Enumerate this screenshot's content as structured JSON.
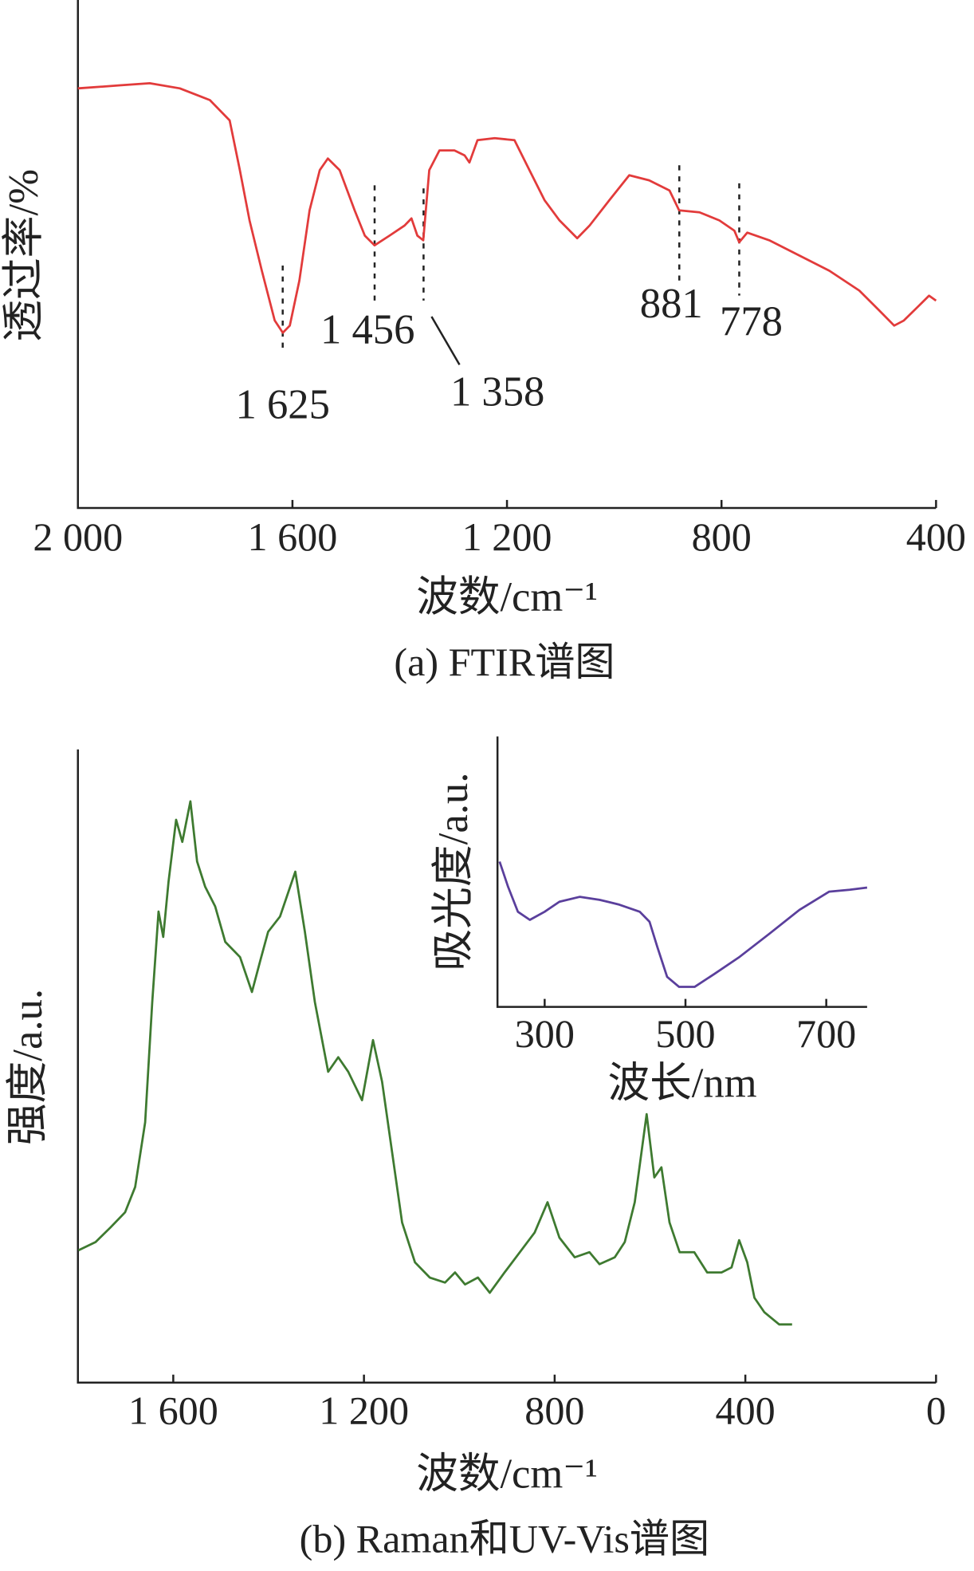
{
  "chart_data": [
    {
      "type": "line",
      "caption": "(a) FTIR谱图",
      "xlabel": "波数/cm⁻¹",
      "ylabel": "透过率/%",
      "color": "#e23b3b",
      "xlim": [
        2000,
        400
      ],
      "ylim": [
        0,
        100
      ],
      "xticks": [
        {
          "value": 2000,
          "label": "2 000"
        },
        {
          "value": 1600,
          "label": "1 600"
        },
        {
          "value": 1200,
          "label": "1 200"
        },
        800,
        400
      ],
      "annotations": [
        "1 625",
        "1 456",
        "1 358",
        "881",
        "778"
      ],
      "x": [
        2000,
        1922,
        1866,
        1810,
        1754,
        1717,
        1698,
        1680,
        1657,
        1633,
        1618,
        1605,
        1587,
        1568,
        1549,
        1534,
        1512,
        1484,
        1465,
        1447,
        1419,
        1391,
        1378,
        1367,
        1356,
        1345,
        1326,
        1298,
        1279,
        1270,
        1255,
        1223,
        1186,
        1158,
        1130,
        1102,
        1069,
        1046,
        1009,
        972,
        935,
        897,
        879,
        841,
        804,
        776,
        767,
        752,
        711,
        655,
        599,
        543,
        506,
        478,
        460,
        432,
        413,
        400
      ],
      "values": [
        82.6,
        83.2,
        83.6,
        82.6,
        80.3,
        76.3,
        66.5,
        56.6,
        46.7,
        36.9,
        34.5,
        35.9,
        44.8,
        58.6,
        66.5,
        68.8,
        66.5,
        58.6,
        53.6,
        51.7,
        53.6,
        55.6,
        57.0,
        53.6,
        52.7,
        66.5,
        70.4,
        70.4,
        69.4,
        68.0,
        72.4,
        72.8,
        72.4,
        66.5,
        60.6,
        56.6,
        53.1,
        55.6,
        60.6,
        65.5,
        64.5,
        62.5,
        58.6,
        58.2,
        56.6,
        54.6,
        52.3,
        54.2,
        52.7,
        49.7,
        46.7,
        42.8,
        38.9,
        35.9,
        36.9,
        39.8,
        41.8,
        40.8
      ]
    },
    {
      "type": "line",
      "caption": "(b) Raman和UV-Vis谱图",
      "xlabel": "波数/cm⁻¹",
      "ylabel": "强度/a.u.",
      "color": "#3e7a30",
      "xlim": [
        1800,
        0
      ],
      "ylim": [
        0,
        100
      ],
      "xticks": [
        {
          "value": 1600,
          "label": "1 600"
        },
        {
          "value": 1200,
          "label": "1 200"
        },
        800,
        400,
        0
      ],
      "x": [
        1799,
        1763,
        1732,
        1701,
        1680,
        1659,
        1644,
        1631,
        1621,
        1610,
        1594,
        1581,
        1564,
        1550,
        1533,
        1512,
        1491,
        1460,
        1435,
        1418,
        1401,
        1376,
        1344,
        1324,
        1303,
        1275,
        1254,
        1233,
        1204,
        1181,
        1162,
        1141,
        1120,
        1093,
        1062,
        1030,
        1009,
        988,
        961,
        936,
        905,
        873,
        842,
        815,
        790,
        758,
        727,
        706,
        674,
        653,
        632,
        607,
        591,
        576,
        559,
        538,
        507,
        480,
        450,
        429,
        413,
        396,
        381,
        360,
        329,
        302
      ],
      "values": [
        20.9,
        22.2,
        24.5,
        26.9,
        30.9,
        41.1,
        60.1,
        74.4,
        70.4,
        79.1,
        88.9,
        85.4,
        91.8,
        82.3,
        78.3,
        75.2,
        69.6,
        67.2,
        61.7,
        66.5,
        71.2,
        73.6,
        80.7,
        71.2,
        60.1,
        49.1,
        51.4,
        49.1,
        44.6,
        54.1,
        47.5,
        36.4,
        25.3,
        19.0,
        16.6,
        15.8,
        17.4,
        15.5,
        16.6,
        14.2,
        17.4,
        20.6,
        23.7,
        28.5,
        22.9,
        19.8,
        20.6,
        18.7,
        19.8,
        22.2,
        28.5,
        42.4,
        32.4,
        34.0,
        25.3,
        20.6,
        20.6,
        17.4,
        17.4,
        18.2,
        22.5,
        19.0,
        13.4,
        11.1,
        9.2,
        9.2
      ]
    },
    {
      "type": "line",
      "xlabel": "波长/nm",
      "ylabel": "吸光度/a.u.",
      "color": "#5a3f9c",
      "xlim": [
        233,
        758
      ],
      "ylim": [
        0,
        100
      ],
      "xticks": [
        300,
        500,
        700
      ],
      "x": [
        236,
        248,
        262,
        279,
        300,
        321,
        350,
        378,
        406,
        435,
        449,
        460,
        474,
        491,
        513,
        541,
        577,
        619,
        662,
        704,
        733,
        758
      ],
      "values": [
        53.7,
        44.4,
        35.2,
        32.2,
        35.2,
        38.9,
        40.7,
        39.6,
        37.8,
        35.2,
        31.5,
        22.2,
        11.1,
        7.4,
        7.4,
        12.2,
        18.5,
        27.0,
        35.9,
        42.6,
        43.3,
        44.1
      ]
    }
  ]
}
